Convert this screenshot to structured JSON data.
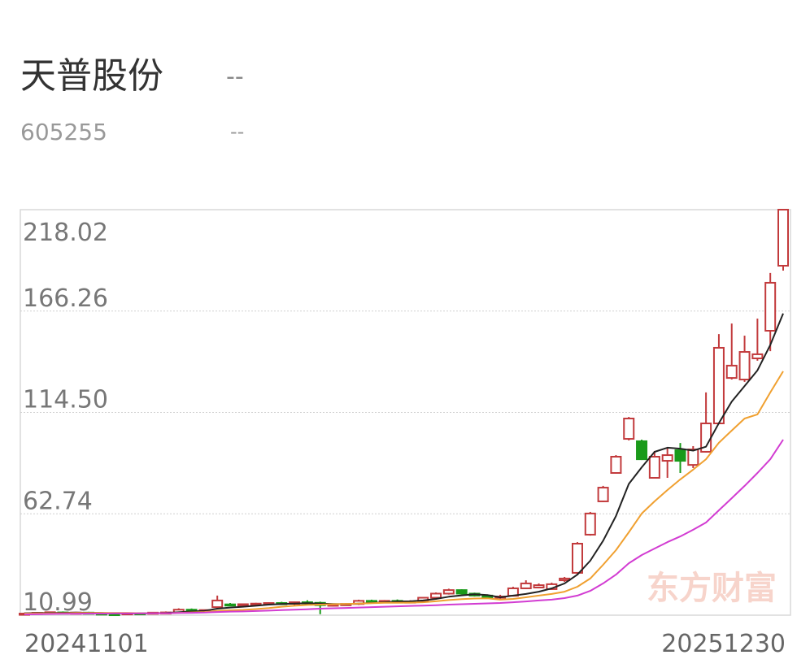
{
  "chart_data": {
    "type": "candlestick",
    "title": "天普股份",
    "title_status": "--",
    "code": "605255",
    "code_status": "--",
    "watermark": "东方财富",
    "categories": [
      "20241101",
      null,
      null,
      null,
      null,
      null,
      null,
      null,
      null,
      null,
      null,
      null,
      null,
      null,
      null,
      null,
      null,
      null,
      null,
      null,
      null,
      null,
      null,
      null,
      null,
      null,
      null,
      null,
      null,
      null,
      null,
      null,
      null,
      null,
      null,
      null,
      null,
      null,
      null,
      null,
      null,
      null,
      null,
      null,
      null,
      null,
      null,
      null,
      null,
      null,
      null,
      null,
      null,
      null,
      null,
      null,
      null,
      null,
      null,
      "20251230"
    ],
    "open": [
      11.5,
      11.8,
      12.2,
      12.4,
      12.0,
      12.3,
      11.9,
      11.6,
      11.4,
      12.0,
      11.8,
      12.3,
      12.4,
      13.8,
      13.2,
      15.1,
      16.5,
      16.2,
      16.6,
      16.9,
      17.2,
      16.8,
      17.6,
      17.3,
      16.1,
      16.4,
      16.7,
      18.3,
      17.8,
      18.3,
      17.9,
      18.0,
      19.9,
      22.0,
      23.8,
      22.0,
      21.0,
      20.0,
      20.9,
      24.7,
      25.1,
      24.3,
      28.8,
      32.6,
      52.1,
      69.1,
      83.6,
      101.0,
      99.8,
      81.1,
      89.8,
      95.2,
      87.7,
      94.4,
      108.9,
      132.1,
      131.3,
      142.1,
      156.2,
      189.4
    ],
    "high": [
      12.3,
      12.6,
      12.8,
      12.9,
      12.6,
      12.7,
      12.4,
      12.0,
      12.2,
      12.4,
      12.5,
      12.9,
      14.5,
      14.4,
      13.9,
      21.0,
      17.2,
      16.9,
      17.3,
      17.6,
      17.8,
      17.9,
      18.6,
      17.9,
      16.8,
      17.1,
      18.9,
      18.9,
      18.7,
      19.0,
      18.6,
      20.2,
      22.6,
      24.5,
      24.2,
      22.5,
      21.6,
      21.4,
      25.5,
      28.8,
      27.2,
      27.6,
      30.5,
      48.3,
      63.7,
      77.0,
      92.7,
      112.2,
      100.6,
      94.8,
      96.5,
      98.9,
      97.3,
      124.7,
      154.5,
      159.9,
      153.7,
      162.4,
      185.7,
      218.02
    ],
    "low": [
      11.0,
      11.4,
      11.9,
      11.8,
      11.6,
      11.7,
      11.3,
      11.1,
      11.2,
      11.6,
      11.5,
      12.0,
      12.1,
      13.0,
      12.8,
      14.5,
      15.8,
      15.6,
      16.0,
      16.3,
      16.5,
      16.2,
      17.0,
      11.5,
      15.4,
      15.8,
      16.2,
      17.5,
      17.2,
      17.6,
      17.0,
      17.6,
      19.5,
      21.5,
      21.5,
      20.5,
      19.8,
      18.9,
      20.5,
      24.3,
      24.7,
      23.9,
      28.0,
      31.7,
      51.6,
      68.7,
      83.2,
      100.2,
      90.2,
      80.7,
      81.1,
      83.6,
      86.1,
      94.0,
      108.5,
      131.3,
      130.1,
      140.9,
      145.8,
      186.9
    ],
    "close": [
      11.8,
      12.2,
      12.5,
      12.0,
      12.3,
      11.9,
      11.6,
      11.4,
      12.0,
      11.8,
      12.3,
      12.4,
      13.8,
      13.2,
      13.6,
      18.5,
      16.2,
      16.6,
      16.9,
      17.2,
      16.8,
      17.6,
      17.3,
      16.1,
      16.4,
      16.7,
      18.3,
      17.8,
      18.3,
      17.9,
      18.0,
      19.9,
      22.0,
      23.8,
      22.0,
      21.0,
      20.0,
      20.5,
      24.7,
      27.2,
      26.3,
      26.8,
      29.7,
      47.5,
      62.9,
      76.1,
      91.9,
      111.4,
      90.6,
      91.9,
      92.7,
      89.8,
      95.6,
      108.9,
      147.5,
      138.4,
      145.4,
      144.2,
      180.7,
      218.02
    ],
    "up_color": "#c23a3c",
    "down_color": "#1a9a1a",
    "lines": [
      {
        "color": "#222222",
        "values": [
          12.0,
          12.1,
          12.2,
          12.2,
          12.3,
          12.2,
          12.1,
          12.0,
          11.9,
          11.9,
          12.0,
          12.1,
          12.5,
          12.9,
          13.2,
          14.3,
          14.9,
          15.3,
          15.8,
          16.4,
          16.7,
          16.9,
          17.1,
          16.9,
          16.7,
          16.6,
          16.9,
          17.2,
          17.6,
          18.0,
          18.1,
          18.5,
          19.3,
          20.4,
          21.1,
          21.7,
          21.3,
          20.1,
          21.0,
          21.8,
          23.0,
          24.7,
          27.2,
          31.7,
          38.8,
          49.0,
          61.6,
          78.0,
          86.5,
          94.4,
          96.5,
          96.0,
          95.0,
          97.0,
          109.0,
          120.0,
          128.0,
          136.0,
          149.0,
          165.0
        ]
      },
      {
        "color": "#f0a030",
        "values": [
          11.8,
          11.9,
          12.0,
          12.0,
          12.1,
          12.1,
          12.1,
          12.1,
          12.1,
          12.0,
          12.0,
          12.0,
          12.2,
          12.4,
          12.6,
          13.2,
          13.5,
          13.7,
          14.1,
          14.6,
          15.3,
          15.8,
          16.2,
          16.4,
          16.6,
          16.7,
          16.9,
          17.1,
          17.3,
          17.3,
          17.4,
          17.6,
          18.1,
          18.7,
          19.2,
          19.5,
          19.6,
          18.9,
          19.3,
          20.1,
          21.0,
          21.8,
          23.0,
          25.5,
          29.7,
          36.7,
          44.2,
          53.3,
          62.9,
          69.1,
          74.9,
          80.3,
          85.3,
          90.6,
          99.0,
          105.2,
          111.4,
          113.5,
          124.7,
          135.5
        ]
      },
      {
        "color": "#d23cd2",
        "values": [
          11.4,
          11.5,
          11.6,
          11.7,
          11.7,
          11.8,
          11.8,
          11.9,
          11.9,
          11.9,
          12.0,
          12.0,
          12.1,
          12.2,
          12.3,
          12.6,
          12.8,
          12.9,
          13.1,
          13.3,
          13.6,
          13.8,
          14.0,
          14.3,
          14.5,
          14.7,
          14.9,
          15.1,
          15.3,
          15.5,
          15.7,
          15.9,
          16.1,
          16.4,
          16.6,
          16.8,
          17.0,
          17.2,
          17.6,
          18.0,
          18.5,
          18.9,
          19.7,
          21.0,
          23.4,
          27.2,
          31.7,
          37.5,
          41.7,
          45.0,
          48.3,
          51.2,
          54.6,
          58.3,
          64.5,
          70.7,
          77.0,
          83.6,
          90.6,
          100.6
        ]
      }
    ],
    "ylim": [
      10.99,
      218.02
    ],
    "yticks": [
      10.99,
      62.74,
      {
        "value": 114.5,
        "label": "114.50"
      },
      166.26,
      218.02
    ],
    "grid": true
  }
}
